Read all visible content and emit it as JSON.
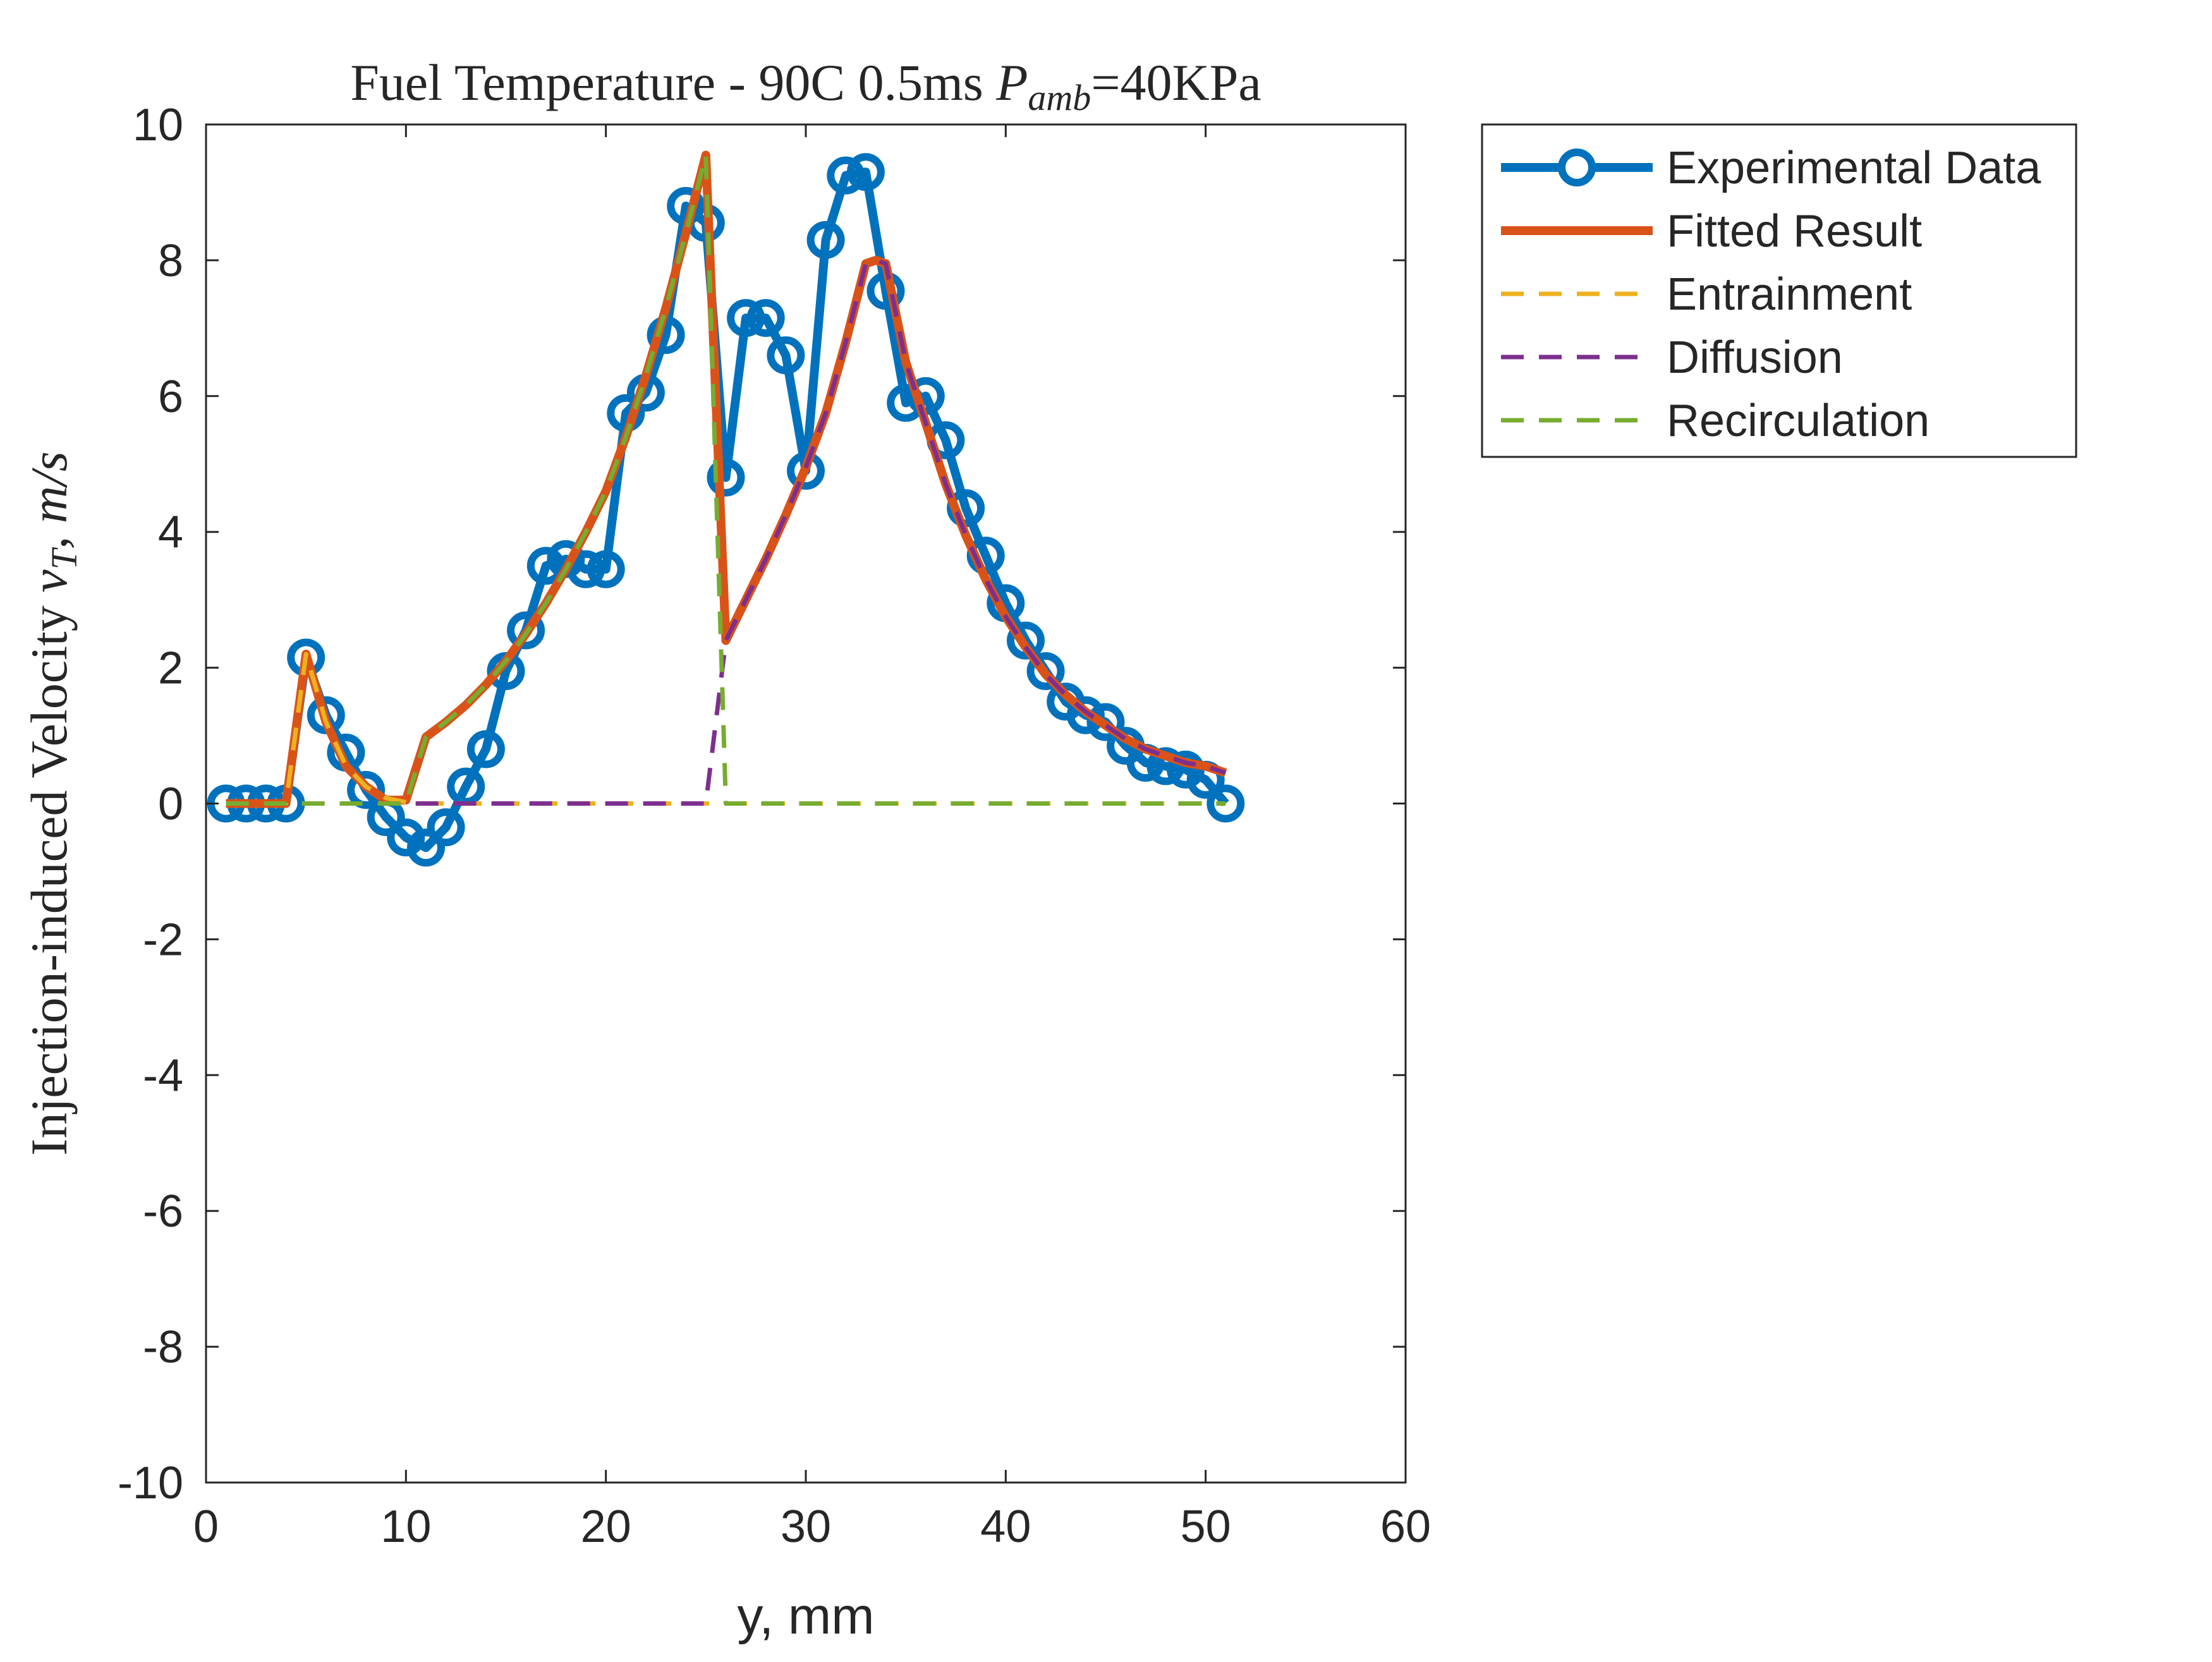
{
  "chart_data": {
    "type": "line",
    "title": "Fuel Temperature - 90C 0.5ms P_amb=40KPa",
    "title_parts": {
      "main": "Fuel Temperature - 90C 0.5ms ",
      "var": "P",
      "sub": "amb",
      "rest": "=40KPa"
    },
    "xlabel": "y, mm",
    "ylabel": "Injection-induced Velocity v_T, m/s",
    "ylabel_parts": {
      "main": "Injection-induced Velocity ",
      "var": "v",
      "sub": "T",
      "rest": ", m/s"
    },
    "xlim": [
      0,
      60
    ],
    "ylim": [
      -10,
      10
    ],
    "xticks": [
      0,
      10,
      20,
      30,
      40,
      50,
      60
    ],
    "yticks": [
      -10,
      -8,
      -6,
      -4,
      -2,
      0,
      2,
      4,
      6,
      8,
      10
    ],
    "grid": false,
    "legend_position": "outside-top-right",
    "series": [
      {
        "name": "Experimental Data",
        "color": "#0072BD",
        "style": "solid-markers",
        "x": [
          1,
          2,
          3,
          4,
          5,
          6,
          7,
          8,
          9,
          10,
          11,
          12,
          13,
          14,
          15,
          16,
          17,
          18,
          19,
          20,
          21,
          22,
          23,
          24,
          25,
          26,
          27,
          28,
          29,
          30,
          31,
          32,
          33,
          34,
          35,
          36,
          37,
          38,
          39,
          40,
          41,
          42,
          43,
          44,
          45,
          46,
          47,
          48,
          49,
          50,
          51
        ],
        "y": [
          0,
          0,
          0,
          0,
          2.15,
          1.3,
          0.75,
          0.2,
          -0.2,
          -0.5,
          -0.65,
          -0.35,
          0.25,
          0.8,
          1.95,
          2.55,
          3.5,
          3.6,
          3.45,
          3.45,
          5.75,
          6.05,
          6.9,
          8.8,
          8.55,
          4.8,
          7.15,
          7.15,
          6.6,
          4.9,
          8.3,
          9.25,
          9.3,
          7.55,
          5.9,
          6.0,
          5.35,
          4.35,
          3.65,
          2.95,
          2.4,
          1.95,
          1.5,
          1.3,
          1.2,
          0.85,
          0.6,
          0.55,
          0.5,
          0.35,
          0
        ]
      },
      {
        "name": "Fitted Result",
        "color": "#D95319",
        "style": "solid",
        "x": [
          1,
          2,
          3,
          4,
          5,
          6,
          7,
          8,
          9,
          10,
          11,
          12,
          13,
          14,
          15,
          16,
          17,
          18,
          19,
          20,
          21,
          22,
          23,
          24,
          25,
          26,
          27,
          28,
          29,
          30,
          31,
          32,
          33,
          33.5,
          34,
          35,
          36,
          37,
          38,
          39,
          40,
          41,
          42,
          43,
          44,
          45,
          46,
          47,
          48,
          49,
          50,
          51
        ],
        "y": [
          0,
          0,
          0,
          0,
          2.2,
          1.2,
          0.55,
          0.25,
          0.05,
          0.05,
          0.98,
          1.2,
          1.45,
          1.75,
          2.1,
          2.5,
          2.95,
          3.45,
          4.0,
          4.6,
          5.4,
          6.3,
          7.3,
          8.4,
          9.55,
          2.4,
          3.0,
          3.6,
          4.25,
          4.95,
          5.75,
          6.8,
          7.95,
          8.0,
          7.95,
          6.5,
          5.6,
          4.7,
          3.95,
          3.3,
          2.75,
          2.3,
          1.9,
          1.6,
          1.35,
          1.15,
          0.95,
          0.8,
          0.7,
          0.6,
          0.55,
          0.45
        ]
      },
      {
        "name": "Entrainment",
        "color": "#EDB120",
        "style": "dashed",
        "x": [
          1,
          4,
          5,
          6,
          7,
          8,
          9,
          10,
          11,
          51
        ],
        "y": [
          0,
          0,
          2.2,
          1.2,
          0.55,
          0.25,
          0.08,
          0.02,
          0,
          0
        ]
      },
      {
        "name": "Diffusion",
        "color": "#7E2F8E",
        "style": "dashed",
        "x": [
          1,
          25,
          26,
          27,
          28,
          29,
          30,
          31,
          32,
          33,
          33.5,
          34,
          35,
          36,
          37,
          38,
          39,
          40,
          41,
          42,
          43,
          44,
          45,
          46,
          47,
          48,
          49,
          50,
          51
        ],
        "y": [
          0,
          0,
          2.4,
          3.0,
          3.6,
          4.25,
          4.95,
          5.75,
          6.8,
          7.95,
          8.0,
          7.95,
          6.5,
          5.6,
          4.7,
          3.95,
          3.3,
          2.75,
          2.3,
          1.9,
          1.6,
          1.35,
          1.15,
          0.95,
          0.8,
          0.7,
          0.6,
          0.55,
          0.45
        ]
      },
      {
        "name": "Recirculation",
        "color": "#77AC30",
        "style": "dashed",
        "x": [
          1,
          10,
          11,
          12,
          13,
          14,
          15,
          16,
          17,
          18,
          19,
          20,
          21,
          22,
          23,
          24,
          25,
          26,
          51
        ],
        "y": [
          0,
          0,
          0.98,
          1.2,
          1.45,
          1.75,
          2.1,
          2.5,
          2.95,
          3.45,
          4.0,
          4.6,
          5.4,
          6.3,
          7.3,
          8.4,
          9.55,
          0,
          0
        ]
      }
    ]
  }
}
